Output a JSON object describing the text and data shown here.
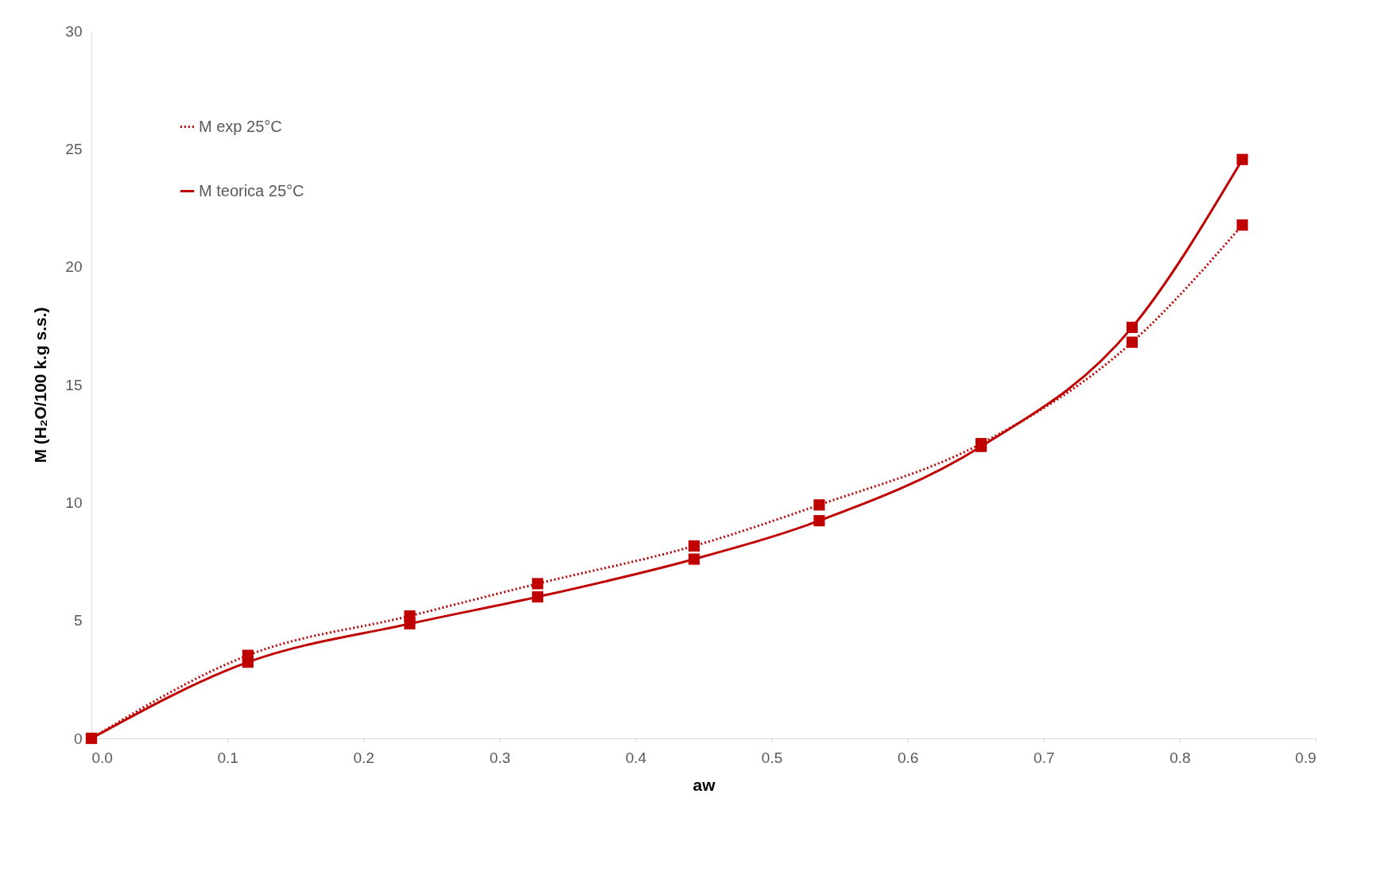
{
  "chart_data": {
    "type": "line",
    "xlabel": "aw",
    "ylabel": "M (H₂O/100 k.g s.s.)",
    "xlim": [
      0,
      0.9
    ],
    "xticks": [
      {
        "value": 0,
        "label": "0.0"
      },
      0.1,
      0.2,
      0.3,
      0.4,
      0.5,
      0.6,
      0.7,
      0.8,
      0.9
    ],
    "ylim": [
      0,
      30
    ],
    "yticks": [
      0,
      5,
      10,
      15,
      20,
      25,
      30
    ],
    "x": [
      0,
      0.115,
      0.234,
      0.328,
      0.443,
      0.535,
      0.654,
      0.765,
      0.846
    ],
    "series": [
      {
        "name": "M exp 25°C",
        "color": "#c00000",
        "line_style": "dotted",
        "values": [
          0,
          3.52,
          5.19,
          6.56,
          8.16,
          9.9,
          12.5,
          16.8,
          21.77
        ]
      },
      {
        "name": "M teorica 25°C",
        "color": "#c00000",
        "line_style": "solid",
        "values": [
          0,
          3.23,
          4.86,
          6.0,
          7.6,
          9.23,
          12.38,
          17.43,
          24.55
        ]
      }
    ],
    "marker": "square",
    "grid": false,
    "legend": "top left"
  }
}
